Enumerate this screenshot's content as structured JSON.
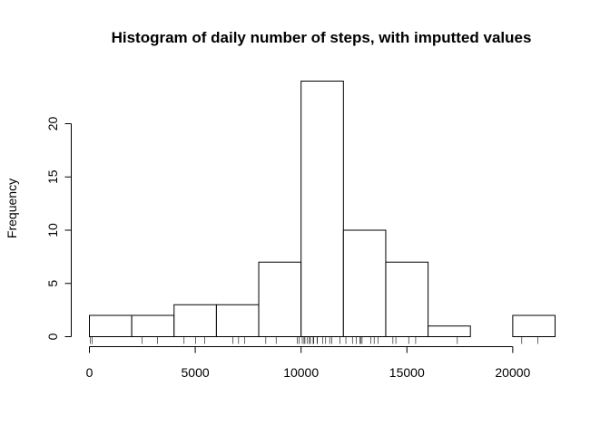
{
  "chart_data": {
    "type": "bar",
    "title": "Histogram of daily number of steps, with imputted values",
    "xlabel": "",
    "ylabel": "Frequency",
    "bins": [
      {
        "from": 0,
        "to": 2000,
        "count": 2
      },
      {
        "from": 2000,
        "to": 4000,
        "count": 2
      },
      {
        "from": 4000,
        "to": 6000,
        "count": 3
      },
      {
        "from": 6000,
        "to": 8000,
        "count": 3
      },
      {
        "from": 8000,
        "to": 10000,
        "count": 7
      },
      {
        "from": 10000,
        "to": 12000,
        "count": 24
      },
      {
        "from": 12000,
        "to": 14000,
        "count": 10
      },
      {
        "from": 14000,
        "to": 16000,
        "count": 7
      },
      {
        "from": 16000,
        "to": 18000,
        "count": 1
      },
      {
        "from": 18000,
        "to": 20000,
        "count": 0
      },
      {
        "from": 20000,
        "to": 22000,
        "count": 2
      }
    ],
    "xlim": [
      0,
      22000
    ],
    "ylim": [
      0,
      24
    ],
    "x_ticks": [
      {
        "value": 0,
        "label": "0"
      },
      {
        "value": 5000,
        "label": "5000"
      },
      {
        "value": 10000,
        "label": "10000"
      },
      {
        "value": 15000,
        "label": "15000"
      },
      {
        "value": 20000,
        "label": "20000"
      }
    ],
    "y_ticks": [
      {
        "value": 0,
        "label": "0"
      },
      {
        "value": 5,
        "label": "5"
      },
      {
        "value": 10,
        "label": "10"
      },
      {
        "value": 15,
        "label": "15"
      },
      {
        "value": 20,
        "label": "20"
      }
    ],
    "rug": [
      41,
      126,
      2492,
      3219,
      4472,
      5018,
      5441,
      6778,
      7047,
      7336,
      8334,
      8821,
      9819,
      9900,
      10056,
      10139,
      10183,
      10304,
      10395,
      10439,
      10571,
      10600,
      10765,
      10766,
      11015,
      11162,
      11352,
      11458,
      11834,
      12116,
      12426,
      12608,
      12787,
      12811,
      12883,
      13294,
      13452,
      13646,
      14339,
      14478,
      15084,
      15414,
      17382,
      20427,
      21194
    ],
    "grid": false,
    "legend": "none"
  }
}
